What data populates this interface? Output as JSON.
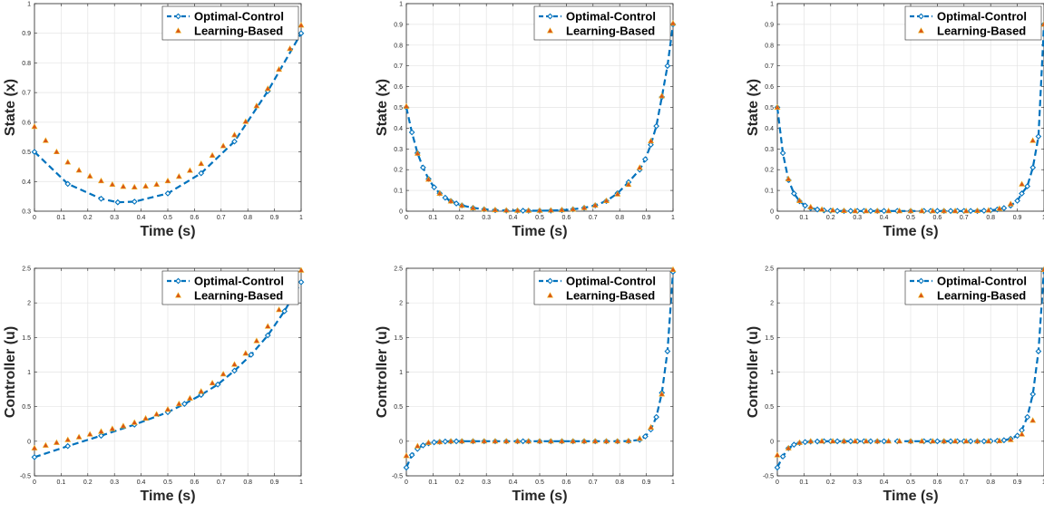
{
  "chart_data": [
    {
      "type": "line",
      "xlabel": "Time (s)",
      "ylabel": "State (x)",
      "xlim": [
        0,
        1
      ],
      "ylim": [
        0.3,
        1
      ],
      "xticks": [
        0,
        0.1,
        0.2,
        0.3,
        0.4,
        0.5,
        0.6,
        0.7,
        0.8,
        0.9,
        1
      ],
      "xtick_labels": [
        "0",
        "0.1",
        "0.2",
        "0.3",
        "0.4",
        "0.5",
        "0.6",
        "0.7",
        "0.8",
        "0.9",
        "1"
      ],
      "yticks": [
        0.3,
        0.4,
        0.5,
        0.6,
        0.7,
        0.8,
        0.9,
        1
      ],
      "ytick_labels": [
        "0.3",
        "0.4",
        "0.5",
        "0.6",
        "0.7",
        "0.8",
        "0.9",
        "1"
      ],
      "grid": true,
      "legend": "top-right",
      "series": [
        {
          "name": "Optimal-Control",
          "style": "dashed-diamond",
          "x": [
            0,
            0.125,
            0.25,
            0.3125,
            0.375,
            0.5,
            0.625,
            0.75,
            0.875,
            1
          ],
          "y": [
            0.5,
            0.392,
            0.342,
            0.33,
            0.332,
            0.36,
            0.428,
            0.535,
            0.705,
            0.9
          ]
        },
        {
          "name": "Learning-Based",
          "style": "triangle",
          "x": [
            0,
            0.042,
            0.083,
            0.125,
            0.167,
            0.208,
            0.25,
            0.292,
            0.333,
            0.375,
            0.417,
            0.458,
            0.5,
            0.542,
            0.583,
            0.625,
            0.667,
            0.708,
            0.75,
            0.792,
            0.833,
            0.875,
            0.917,
            0.958,
            1
          ],
          "y": [
            0.585,
            0.538,
            0.5,
            0.465,
            0.438,
            0.418,
            0.402,
            0.39,
            0.383,
            0.381,
            0.384,
            0.39,
            0.402,
            0.417,
            0.437,
            0.46,
            0.488,
            0.52,
            0.557,
            0.602,
            0.655,
            0.713,
            0.778,
            0.848,
            0.927
          ]
        }
      ]
    },
    {
      "type": "line",
      "xlabel": "Time (s)",
      "ylabel": "State (x)",
      "xlim": [
        0,
        1
      ],
      "ylim": [
        0,
        1
      ],
      "xticks": [
        0,
        0.1,
        0.2,
        0.3,
        0.4,
        0.5,
        0.6,
        0.7,
        0.8,
        0.9,
        1
      ],
      "xtick_labels": [
        "0",
        "0.1",
        "0.2",
        "0.3",
        "0.4",
        "0.5",
        "0.6",
        "0.7",
        "0.8",
        "0.9",
        "1"
      ],
      "yticks": [
        0,
        0.1,
        0.2,
        0.3,
        0.4,
        0.5,
        0.6,
        0.7,
        0.8,
        0.9,
        1
      ],
      "ytick_labels": [
        "0",
        "0.1",
        "0.2",
        "0.3",
        "0.4",
        "0.5",
        "0.6",
        "0.7",
        "0.8",
        "0.9",
        "1"
      ],
      "grid": true,
      "legend": "top-right",
      "series": [
        {
          "name": "Optimal-Control",
          "style": "dashed-diamond",
          "x": [
            0,
            0.0208,
            0.0417,
            0.0625,
            0.0833,
            0.1042,
            0.125,
            0.1458,
            0.1667,
            0.1875,
            0.2083,
            0.25,
            0.2917,
            0.3333,
            0.375,
            0.4167,
            0.4375,
            0.4583,
            0.5,
            0.5417,
            0.5833,
            0.625,
            0.6667,
            0.7083,
            0.75,
            0.7917,
            0.8333,
            0.875,
            0.8958,
            0.9167,
            0.9375,
            0.9583,
            0.9792,
            1
          ],
          "y": [
            0.5,
            0.38,
            0.28,
            0.21,
            0.155,
            0.115,
            0.086,
            0.065,
            0.049,
            0.037,
            0.028,
            0.016,
            0.009,
            0.005,
            0.003,
            0.002,
            0.002,
            0.002,
            0.002,
            0.003,
            0.005,
            0.009,
            0.016,
            0.028,
            0.049,
            0.086,
            0.14,
            0.2,
            0.25,
            0.32,
            0.41,
            0.55,
            0.7,
            0.9
          ]
        },
        {
          "name": "Learning-Based",
          "style": "triangle",
          "x": [
            0,
            0.042,
            0.083,
            0.125,
            0.167,
            0.208,
            0.25,
            0.292,
            0.333,
            0.375,
            0.417,
            0.458,
            0.5,
            0.542,
            0.583,
            0.625,
            0.667,
            0.708,
            0.75,
            0.792,
            0.833,
            0.875,
            0.917,
            0.958,
            1
          ],
          "y": [
            0.505,
            0.278,
            0.153,
            0.085,
            0.048,
            0.027,
            0.015,
            0.009,
            0.006,
            0.004,
            0.003,
            0.003,
            0.003,
            0.004,
            0.006,
            0.009,
            0.016,
            0.028,
            0.05,
            0.082,
            0.128,
            0.21,
            0.338,
            0.555,
            0.905
          ]
        }
      ]
    },
    {
      "type": "line",
      "xlabel": "Time (s)",
      "ylabel": "State (x)",
      "xlim": [
        0,
        1
      ],
      "ylim": [
        0,
        1
      ],
      "xticks": [
        0,
        0.1,
        0.2,
        0.3,
        0.4,
        0.5,
        0.6,
        0.7,
        0.8,
        0.9,
        1
      ],
      "xtick_labels": [
        "0",
        "0.1",
        "0.2",
        "0.3",
        "0.4",
        "0.5",
        "0.6",
        "0.7",
        "0.8",
        "0.9",
        "1"
      ],
      "yticks": [
        0,
        0.1,
        0.2,
        0.3,
        0.4,
        0.5,
        0.6,
        0.7,
        0.8,
        0.9,
        1
      ],
      "ytick_labels": [
        "0",
        "0.1",
        "0.2",
        "0.3",
        "0.4",
        "0.5",
        "0.6",
        "0.7",
        "0.8",
        "0.9",
        "1"
      ],
      "grid": true,
      "legend": "top-right",
      "series": [
        {
          "name": "Optimal-Control",
          "style": "dashed-diamond",
          "x": [
            0,
            0.0208,
            0.0417,
            0.0625,
            0.0833,
            0.1042,
            0.125,
            0.15,
            0.175,
            0.2,
            0.225,
            0.25,
            0.275,
            0.3,
            0.325,
            0.35,
            0.375,
            0.4,
            0.45,
            0.5,
            0.55,
            0.575,
            0.6,
            0.625,
            0.65,
            0.675,
            0.7,
            0.725,
            0.75,
            0.775,
            0.8,
            0.825,
            0.85,
            0.875,
            0.9,
            0.9167,
            0.9375,
            0.9583,
            0.9792,
            1
          ],
          "y": [
            0.5,
            0.28,
            0.15,
            0.085,
            0.048,
            0.027,
            0.015,
            0.008,
            0.004,
            0.002,
            0.001,
            0.001,
            0.001,
            0.001,
            0.001,
            0.001,
            0.001,
            0.001,
            0.001,
            0.001,
            0.001,
            0.001,
            0.001,
            0.001,
            0.001,
            0.001,
            0.001,
            0.001,
            0.001,
            0.002,
            0.004,
            0.008,
            0.015,
            0.027,
            0.05,
            0.085,
            0.12,
            0.21,
            0.36,
            0.9
          ]
        },
        {
          "name": "Learning-Based",
          "style": "triangle",
          "x": [
            0,
            0.0417,
            0.0833,
            0.125,
            0.167,
            0.208,
            0.25,
            0.292,
            0.333,
            0.375,
            0.417,
            0.458,
            0.5,
            0.542,
            0.583,
            0.625,
            0.667,
            0.708,
            0.75,
            0.792,
            0.833,
            0.875,
            0.917,
            0.958,
            1
          ],
          "y": [
            0.5,
            0.155,
            0.05,
            0.02,
            0.008,
            0.004,
            0.002,
            0.001,
            0.001,
            0.001,
            0.001,
            0.001,
            0.001,
            0.001,
            0.001,
            0.001,
            0.001,
            0.001,
            0.002,
            0.004,
            0.012,
            0.035,
            0.13,
            0.34,
            0.9
          ]
        }
      ]
    },
    {
      "type": "line",
      "xlabel": "Time (s)",
      "ylabel": "Controller (u)",
      "xlim": [
        0,
        1
      ],
      "ylim": [
        -0.5,
        2.5
      ],
      "xticks": [
        0,
        0.1,
        0.2,
        0.3,
        0.4,
        0.5,
        0.6,
        0.7,
        0.8,
        0.9,
        1
      ],
      "xtick_labels": [
        "0",
        "0.1",
        "0.2",
        "0.3",
        "0.4",
        "0.5",
        "0.6",
        "0.7",
        "0.8",
        "0.9",
        "1"
      ],
      "yticks": [
        -0.5,
        0,
        0.5,
        1,
        1.5,
        2,
        2.5
      ],
      "ytick_labels": [
        "-0.5",
        "0",
        "0.5",
        "1",
        "1.5",
        "2",
        "2.5"
      ],
      "grid": true,
      "legend": "top-right",
      "series": [
        {
          "name": "Optimal-Control",
          "style": "dashed-diamond",
          "x": [
            0,
            0.125,
            0.25,
            0.375,
            0.5,
            0.5625,
            0.625,
            0.6875,
            0.75,
            0.8125,
            0.875,
            0.9375,
            1
          ],
          "y": [
            -0.23,
            -0.07,
            0.08,
            0.24,
            0.42,
            0.54,
            0.67,
            0.82,
            1.02,
            1.25,
            1.53,
            1.88,
            2.3
          ]
        },
        {
          "name": "Learning-Based",
          "style": "triangle",
          "x": [
            0,
            0.042,
            0.083,
            0.125,
            0.167,
            0.208,
            0.25,
            0.292,
            0.333,
            0.375,
            0.417,
            0.458,
            0.5,
            0.542,
            0.583,
            0.625,
            0.667,
            0.708,
            0.75,
            0.792,
            0.833,
            0.875,
            0.917,
            0.958,
            1
          ],
          "y": [
            -0.1,
            -0.06,
            -0.02,
            0.02,
            0.06,
            0.1,
            0.14,
            0.18,
            0.22,
            0.27,
            0.33,
            0.39,
            0.46,
            0.54,
            0.62,
            0.72,
            0.84,
            0.97,
            1.11,
            1.27,
            1.45,
            1.66,
            1.9,
            2.17,
            2.47
          ]
        }
      ]
    },
    {
      "type": "line",
      "xlabel": "Time (s)",
      "ylabel": "Controller (u)",
      "xlim": [
        0,
        1
      ],
      "ylim": [
        -0.5,
        2.5
      ],
      "xticks": [
        0,
        0.1,
        0.2,
        0.3,
        0.4,
        0.5,
        0.6,
        0.7,
        0.8,
        0.9,
        1
      ],
      "xtick_labels": [
        "0",
        "0.1",
        "0.2",
        "0.3",
        "0.4",
        "0.5",
        "0.6",
        "0.7",
        "0.8",
        "0.9",
        "1"
      ],
      "yticks": [
        -0.5,
        0,
        0.5,
        1,
        1.5,
        2,
        2.5
      ],
      "ytick_labels": [
        "-0.5",
        "0",
        "0.5",
        "1",
        "1.5",
        "2",
        "2.5"
      ],
      "grid": true,
      "legend": "top-right",
      "series": [
        {
          "name": "Optimal-Control",
          "style": "dashed-diamond",
          "x": [
            0,
            0.0208,
            0.0417,
            0.0625,
            0.0833,
            0.1042,
            0.125,
            0.1458,
            0.1667,
            0.1875,
            0.2083,
            0.25,
            0.2917,
            0.3333,
            0.375,
            0.4167,
            0.4375,
            0.4583,
            0.5,
            0.5417,
            0.5833,
            0.625,
            0.6667,
            0.7083,
            0.75,
            0.7917,
            0.8333,
            0.875,
            0.8958,
            0.9167,
            0.9375,
            0.9583,
            0.9792,
            1
          ],
          "y": [
            -0.38,
            -0.2,
            -0.11,
            -0.06,
            -0.03,
            -0.015,
            -0.008,
            -0.004,
            -0.002,
            -0.001,
            0,
            0,
            0,
            0,
            0,
            0,
            0,
            0,
            0,
            0,
            0,
            0,
            0,
            0,
            0,
            0,
            0.002,
            0.02,
            0.07,
            0.17,
            0.35,
            0.7,
            1.3,
            2.45
          ]
        },
        {
          "name": "Learning-Based",
          "style": "triangle",
          "x": [
            0,
            0.042,
            0.083,
            0.125,
            0.167,
            0.208,
            0.25,
            0.292,
            0.333,
            0.375,
            0.417,
            0.458,
            0.5,
            0.542,
            0.583,
            0.625,
            0.667,
            0.708,
            0.75,
            0.792,
            0.833,
            0.875,
            0.917,
            0.958,
            1
          ],
          "y": [
            -0.21,
            -0.07,
            -0.02,
            -0.01,
            0,
            0,
            0,
            0,
            0,
            0,
            0,
            0,
            0,
            0,
            0,
            0,
            0,
            0,
            0,
            0,
            0.005,
            0.04,
            0.2,
            0.68,
            2.48
          ]
        }
      ]
    },
    {
      "type": "line",
      "xlabel": "Time (s)",
      "ylabel": "Controller (u)",
      "xlim": [
        0,
        1
      ],
      "ylim": [
        -0.5,
        2.5
      ],
      "xticks": [
        0,
        0.1,
        0.2,
        0.3,
        0.4,
        0.5,
        0.6,
        0.7,
        0.8,
        0.9,
        1
      ],
      "xtick_labels": [
        "0",
        "0.1",
        "0.2",
        "0.3",
        "0.4",
        "0.5",
        "0.6",
        "0.7",
        "0.8",
        "0.9",
        "1"
      ],
      "yticks": [
        -0.5,
        0,
        0.5,
        1,
        1.5,
        2,
        2.5
      ],
      "ytick_labels": [
        "-0.5",
        "0",
        "0.5",
        "1",
        "1.5",
        "2",
        "2.5"
      ],
      "grid": true,
      "legend": "top-right",
      "series": [
        {
          "name": "Optimal-Control",
          "style": "dashed-diamond",
          "x": [
            0,
            0.0208,
            0.0417,
            0.0625,
            0.0833,
            0.1042,
            0.125,
            0.15,
            0.175,
            0.2,
            0.225,
            0.25,
            0.275,
            0.3,
            0.325,
            0.35,
            0.375,
            0.4,
            0.45,
            0.5,
            0.55,
            0.575,
            0.6,
            0.625,
            0.65,
            0.675,
            0.7,
            0.725,
            0.75,
            0.775,
            0.8,
            0.825,
            0.85,
            0.875,
            0.9,
            0.9167,
            0.9375,
            0.9583,
            0.9792,
            1
          ],
          "y": [
            -0.38,
            -0.22,
            -0.1,
            -0.05,
            -0.025,
            -0.012,
            -0.006,
            -0.003,
            -0.001,
            0,
            0,
            0,
            0,
            0,
            0,
            0,
            0,
            0,
            0,
            0,
            0,
            0,
            0,
            0,
            0,
            0,
            0,
            0,
            0,
            0,
            0.002,
            0.006,
            0.015,
            0.035,
            0.08,
            0.16,
            0.35,
            0.68,
            1.3,
            2.48
          ]
        },
        {
          "name": "Learning-Based",
          "style": "triangle",
          "x": [
            0,
            0.0417,
            0.0833,
            0.125,
            0.167,
            0.208,
            0.25,
            0.292,
            0.333,
            0.375,
            0.417,
            0.458,
            0.5,
            0.542,
            0.583,
            0.625,
            0.667,
            0.708,
            0.75,
            0.792,
            0.833,
            0.875,
            0.917,
            0.958,
            1
          ],
          "y": [
            -0.2,
            -0.1,
            -0.02,
            0,
            0,
            0,
            0,
            0,
            0,
            0,
            0,
            0,
            0,
            0,
            0,
            0,
            0,
            0,
            0,
            0,
            0.005,
            0.02,
            0.1,
            0.3,
            2.48
          ]
        }
      ]
    }
  ]
}
